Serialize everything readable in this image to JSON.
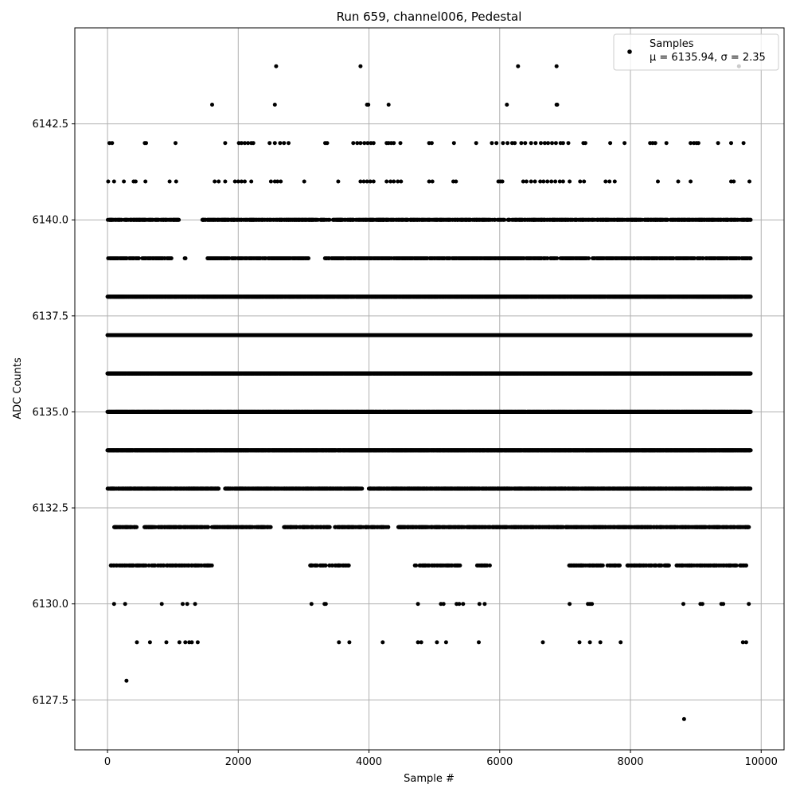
{
  "chart_data": {
    "type": "scatter",
    "title": "Run 659, channel006, Pedestal",
    "xlabel": "Sample #",
    "ylabel": "ADC Counts",
    "xlim": [
      -500,
      10350
    ],
    "ylim": [
      6126.2,
      6145.0
    ],
    "xticks": [
      0,
      2000,
      4000,
      6000,
      8000,
      10000
    ],
    "yticks": [
      6127.5,
      6130.0,
      6132.5,
      6135.0,
      6137.5,
      6140.0,
      6142.5
    ],
    "xtick_labels": [
      "0",
      "2000",
      "4000",
      "6000",
      "8000",
      "10000"
    ],
    "ytick_labels": [
      "6127.5",
      "6130.0",
      "6132.5",
      "6135.0",
      "6137.5",
      "6140.0",
      "6142.5"
    ],
    "grid": true,
    "legend": {
      "placement": "top-right",
      "entries": [
        {
          "label": "Samples",
          "sublabel": "μ = 6135.94, σ = 2.35"
        }
      ]
    },
    "series": [
      {
        "name": "Samples",
        "color": "#000000",
        "marker": "circle",
        "n_samples": 9830,
        "levels": [
          {
            "y": 6144,
            "x": [
              2580,
              3870,
              6280,
              6870,
              9660
            ]
          },
          {
            "y": 6143,
            "x": [
              1600,
              2560,
              3970,
              3990,
              4300,
              6110,
              6870,
              6880
            ]
          },
          {
            "y": 6142,
            "x": [
              30,
              70,
              570,
              590,
              1040,
              1800,
              2010,
              2050,
              2100,
              2150,
              2200,
              2230,
              2480,
              2560,
              2640,
              2700,
              2770,
              3330,
              3360,
              3760,
              3820,
              3870,
              3930,
              3980,
              4030,
              4070,
              4270,
              4300,
              4340,
              4380,
              4480,
              4920,
              4960,
              5300,
              5640,
              5880,
              5950,
              6050,
              6120,
              6190,
              6230,
              6330,
              6390,
              6480,
              6550,
              6630,
              6690,
              6740,
              6800,
              6860,
              6930,
              6970,
              7050,
              7280,
              7310,
              7690,
              7910,
              8300,
              8340,
              8380,
              8550,
              8920,
              8970,
              9010,
              9040,
              9340,
              9540,
              9730
            ]
          },
          {
            "y": 6141,
            "x": [
              10,
              100,
              250,
              400,
              430,
              580,
              950,
              1050,
              1640,
              1700,
              1800,
              1950,
              2000,
              2050,
              2100,
              2200,
              2500,
              2560,
              2600,
              2650,
              3010,
              3530,
              3870,
              3920,
              3970,
              4020,
              4070,
              4270,
              4330,
              4380,
              4440,
              4490,
              4920,
              4970,
              5290,
              5330,
              5980,
              6010,
              6040,
              6360,
              6410,
              6480,
              6540,
              6620,
              6670,
              6730,
              6790,
              6850,
              6920,
              6970,
              7070,
              7230,
              7290,
              7620,
              7680,
              7760,
              8420,
              8730,
              8920,
              9540,
              9580,
              9820
            ]
          },
          {
            "y": 6140,
            "band": [
              [
                0,
                1100
              ],
              [
                1450,
                3400
              ],
              [
                3450,
                9840
              ]
            ],
            "density": 0.35
          },
          {
            "y": 6139,
            "band": [
              [
                0,
                980
              ],
              [
                1180,
                1200
              ],
              [
                1530,
                3100
              ],
              [
                3320,
                9840
              ]
            ],
            "density": 0.3
          },
          {
            "y": 6138,
            "band": [
              [
                0,
                9840
              ]
            ],
            "density": 0.9
          },
          {
            "y": 6137,
            "band": [
              [
                0,
                9840
              ]
            ],
            "density": 0.95
          },
          {
            "y": 6136,
            "band": [
              [
                0,
                9840
              ]
            ],
            "density": 0.98
          },
          {
            "y": 6135,
            "band": [
              [
                0,
                9840
              ]
            ],
            "density": 0.95
          },
          {
            "y": 6134,
            "band": [
              [
                0,
                9840
              ]
            ],
            "density": 0.9
          },
          {
            "y": 6133,
            "band": [
              [
                0,
                1700
              ],
              [
                1800,
                3900
              ],
              [
                4000,
                9840
              ]
            ],
            "density": 0.6
          },
          {
            "y": 6132,
            "band": [
              [
                100,
                450
              ],
              [
                550,
                1550
              ],
              [
                1600,
                2500
              ],
              [
                2700,
                3400
              ],
              [
                3450,
                4300
              ],
              [
                4450,
                9840
              ]
            ],
            "density": 0.4
          },
          {
            "y": 6131,
            "band": [
              [
                50,
                1600
              ],
              [
                3100,
                3700
              ],
              [
                4700,
                5400
              ],
              [
                5650,
                5850
              ],
              [
                7050,
                7850
              ],
              [
                7950,
                8600
              ],
              [
                8700,
                9800
              ]
            ],
            "density": 0.25
          },
          {
            "y": 6130,
            "x": [
              100,
              270,
              830,
              1150,
              1220,
              1340,
              3120,
              3320,
              3340,
              4750,
              5100,
              5140,
              5340,
              5380,
              5440,
              5690,
              5770,
              7070,
              7350,
              7380,
              7410,
              8810,
              9070,
              9100,
              9390,
              9420,
              9810
            ]
          },
          {
            "y": 6129,
            "x": [
              450,
              650,
              900,
              1100,
              1190,
              1250,
              1290,
              1380,
              3540,
              3700,
              4210,
              4750,
              4800,
              5040,
              5180,
              5680,
              6660,
              7220,
              7380,
              7540,
              7850,
              9720,
              9770
            ]
          },
          {
            "y": 6128,
            "x": [
              290
            ]
          },
          {
            "y": 6127,
            "x": [
              8820
            ]
          }
        ]
      }
    ]
  }
}
